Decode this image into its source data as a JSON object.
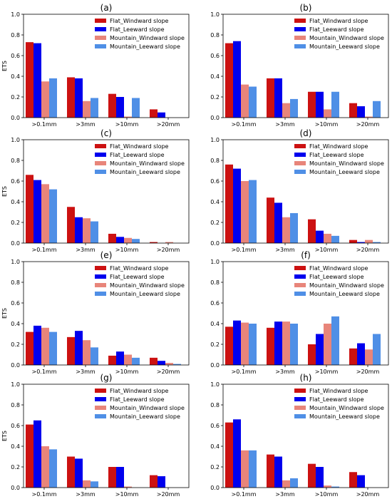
{
  "chart_data": [
    {
      "type": "bar",
      "title": "(a)",
      "ylabel": "ETS",
      "ylim": [
        0,
        1.0
      ],
      "yticks": [
        "0.0",
        "0.2",
        "0.4",
        "0.6",
        "0.8",
        "1.0"
      ],
      "legend_position": "top-right",
      "categories": [
        ">0.1mm",
        ">3mm",
        ">10mm",
        ">20mm"
      ],
      "series": [
        {
          "name": "Flat_Windward slope",
          "color": "#cc1111",
          "values": [
            0.73,
            0.39,
            0.23,
            0.08
          ]
        },
        {
          "name": "Flat_Leeward slope",
          "color": "#0000ee",
          "values": [
            0.72,
            0.38,
            0.2,
            0.05
          ]
        },
        {
          "name": "Mountain_Windward slope",
          "color": "#e8857a",
          "values": [
            0.35,
            0.16,
            0.01,
            0.0
          ]
        },
        {
          "name": "Mountain_Leeward slope",
          "color": "#4f8fe6",
          "values": [
            0.38,
            0.19,
            0.19,
            0.0
          ]
        }
      ]
    },
    {
      "type": "bar",
      "title": "(b)",
      "ylabel": "",
      "ylim": [
        0,
        1.0
      ],
      "yticks": [
        "0.0",
        "0.2",
        "0.4",
        "0.6",
        "0.8",
        "1.0"
      ],
      "legend_position": "top-right",
      "categories": [
        ">0.1mm",
        ">3mm",
        ">10mm",
        ">20mm"
      ],
      "series": [
        {
          "name": "Flat_Windward slope",
          "color": "#cc1111",
          "values": [
            0.72,
            0.38,
            0.25,
            0.14
          ]
        },
        {
          "name": "Flat_Leeward slope",
          "color": "#0000ee",
          "values": [
            0.74,
            0.38,
            0.25,
            0.11
          ]
        },
        {
          "name": "Mountain_Windward slope",
          "color": "#e8857a",
          "values": [
            0.32,
            0.14,
            0.08,
            0.01
          ]
        },
        {
          "name": "Mountain_Leeward slope",
          "color": "#4f8fe6",
          "values": [
            0.3,
            0.18,
            0.25,
            0.16
          ]
        }
      ]
    },
    {
      "type": "bar",
      "title": "(c)",
      "ylabel": "ETS",
      "ylim": [
        0,
        1.0
      ],
      "yticks": [
        "0.0",
        "0.2",
        "0.4",
        "0.6",
        "0.8",
        "1.0"
      ],
      "legend_position": "top-right",
      "categories": [
        ">0.1mm",
        ">3mm",
        ">10mm",
        ">20mm"
      ],
      "series": [
        {
          "name": "Flat_Windward slope",
          "color": "#cc1111",
          "values": [
            0.66,
            0.35,
            0.09,
            0.01
          ]
        },
        {
          "name": "Flat_Leeward slope",
          "color": "#0000ee",
          "values": [
            0.61,
            0.25,
            0.06,
            0.0
          ]
        },
        {
          "name": "Mountain_Windward slope",
          "color": "#e8857a",
          "values": [
            0.57,
            0.24,
            0.05,
            0.01
          ]
        },
        {
          "name": "Mountain_Leeward slope",
          "color": "#4f8fe6",
          "values": [
            0.52,
            0.21,
            0.04,
            0.0
          ]
        }
      ]
    },
    {
      "type": "bar",
      "title": "(d)",
      "ylabel": "",
      "ylim": [
        0,
        1.0
      ],
      "yticks": [
        "0.0",
        "0.2",
        "0.4",
        "0.6",
        "0.8",
        "1.0"
      ],
      "legend_position": "top-right",
      "categories": [
        ">0.1mm",
        ">3mm",
        ">10mm",
        ">20mm"
      ],
      "series": [
        {
          "name": "Flat_Windward slope",
          "color": "#cc1111",
          "values": [
            0.76,
            0.44,
            0.23,
            0.03
          ]
        },
        {
          "name": "Flat_Leeward slope",
          "color": "#0000ee",
          "values": [
            0.72,
            0.39,
            0.12,
            0.01
          ]
        },
        {
          "name": "Mountain_Windward slope",
          "color": "#e8857a",
          "values": [
            0.6,
            0.25,
            0.09,
            0.03
          ]
        },
        {
          "name": "Mountain_Leeward slope",
          "color": "#4f8fe6",
          "values": [
            0.61,
            0.29,
            0.07,
            0.01
          ]
        }
      ]
    },
    {
      "type": "bar",
      "title": "(e)",
      "ylabel": "ETS",
      "ylim": [
        0,
        1.0
      ],
      "yticks": [
        "0.0",
        "0.2",
        "0.4",
        "0.6",
        "0.8",
        "1.0"
      ],
      "legend_position": "top-right",
      "categories": [
        ">0.1mm",
        ">3mm",
        ">10mm",
        ">20mm"
      ],
      "series": [
        {
          "name": "Flat_Windward slope",
          "color": "#cc1111",
          "values": [
            0.32,
            0.27,
            0.09,
            0.07
          ]
        },
        {
          "name": "Flat_Leeward slope",
          "color": "#0000ee",
          "values": [
            0.38,
            0.33,
            0.13,
            0.04
          ]
        },
        {
          "name": "Mountain_Windward slope",
          "color": "#e8857a",
          "values": [
            0.36,
            0.24,
            0.1,
            0.02
          ]
        },
        {
          "name": "Mountain_Leeward slope",
          "color": "#4f8fe6",
          "values": [
            0.32,
            0.17,
            0.07,
            0.01
          ]
        }
      ]
    },
    {
      "type": "bar",
      "title": "(f)",
      "ylabel": "",
      "ylim": [
        0,
        1.0
      ],
      "yticks": [
        "0.0",
        "0.2",
        "0.4",
        "0.6",
        "0.8",
        "1.0"
      ],
      "legend_position": "top-right",
      "categories": [
        ">0.1mm",
        ">3mm",
        ">10mm",
        ">20mm"
      ],
      "series": [
        {
          "name": "Flat_Windward slope",
          "color": "#cc1111",
          "values": [
            0.37,
            0.36,
            0.2,
            0.16
          ]
        },
        {
          "name": "Flat_Leeward slope",
          "color": "#0000ee",
          "values": [
            0.43,
            0.42,
            0.3,
            0.21
          ]
        },
        {
          "name": "Mountain_Windward slope",
          "color": "#e8857a",
          "values": [
            0.41,
            0.42,
            0.4,
            0.15
          ]
        },
        {
          "name": "Mountain_Leeward slope",
          "color": "#4f8fe6",
          "values": [
            0.4,
            0.4,
            0.47,
            0.3
          ]
        }
      ]
    },
    {
      "type": "bar",
      "title": "(g)",
      "ylabel": "ETS",
      "ylim": [
        0,
        1.0
      ],
      "yticks": [
        "0.0",
        "0.2",
        "0.4",
        "0.6",
        "0.8",
        "1.0"
      ],
      "legend_position": "top-right",
      "categories": [
        ">0.1mm",
        ">3mm",
        ">10mm",
        ">20mm"
      ],
      "series": [
        {
          "name": "Flat_Windward slope",
          "color": "#cc1111",
          "values": [
            0.61,
            0.3,
            0.2,
            0.12
          ]
        },
        {
          "name": "Flat_Leeward slope",
          "color": "#0000ee",
          "values": [
            0.65,
            0.28,
            0.2,
            0.11
          ]
        },
        {
          "name": "Mountain_Windward slope",
          "color": "#e8857a",
          "values": [
            0.4,
            0.07,
            0.01,
            0.0
          ]
        },
        {
          "name": "Mountain_Leeward slope",
          "color": "#4f8fe6",
          "values": [
            0.37,
            0.06,
            0.0,
            0.0
          ]
        }
      ]
    },
    {
      "type": "bar",
      "title": "(h)",
      "ylabel": "",
      "ylim": [
        0,
        1.0
      ],
      "yticks": [
        "0.0",
        "0.2",
        "0.4",
        "0.6",
        "0.8",
        "1.0"
      ],
      "legend_position": "top-right",
      "categories": [
        ">0.1mm",
        ">3mm",
        ">10mm",
        ">20mm"
      ],
      "series": [
        {
          "name": "Flat_Windward slope",
          "color": "#cc1111",
          "values": [
            0.63,
            0.32,
            0.23,
            0.15
          ]
        },
        {
          "name": "Flat_Leeward slope",
          "color": "#0000ee",
          "values": [
            0.66,
            0.3,
            0.2,
            0.12
          ]
        },
        {
          "name": "Mountain_Windward slope",
          "color": "#e8857a",
          "values": [
            0.36,
            0.07,
            0.02,
            0.0
          ]
        },
        {
          "name": "Mountain_Leeward slope",
          "color": "#4f8fe6",
          "values": [
            0.36,
            0.09,
            0.01,
            0.0
          ]
        }
      ]
    }
  ]
}
